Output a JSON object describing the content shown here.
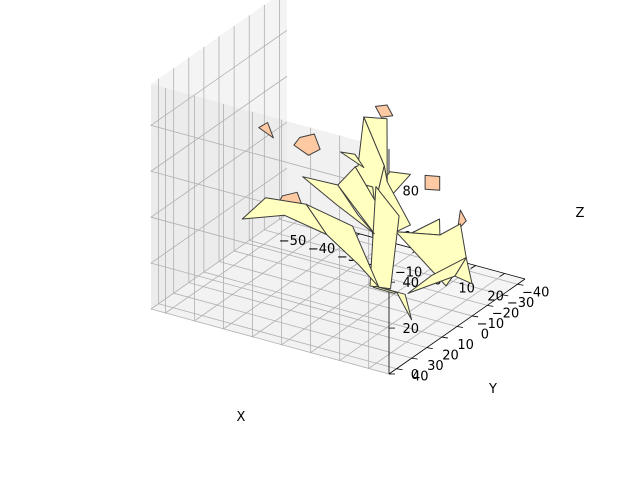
{
  "chart_data": {
    "type": "3d-polygon-mesh",
    "description_of_view": "matplotlib 3D axes, default elevation/azimuth",
    "xlabel": "X",
    "ylabel": "Y",
    "zlabel": "Z",
    "xlim": [
      -55,
      27
    ],
    "ylim": [
      -45,
      45
    ],
    "zlim": [
      0,
      98
    ],
    "x_ticks": [
      -50,
      -40,
      -30,
      -20,
      -10,
      0,
      10,
      20
    ],
    "y_ticks": [
      -40,
      -30,
      -20,
      -10,
      0,
      10,
      20,
      30,
      40
    ],
    "z_ticks": [
      0,
      20,
      40,
      60,
      80
    ],
    "grid": true,
    "colors": {
      "leaf_face": "#ffffbf",
      "bud_face": "#fdc9a3",
      "edge": "#3c3c3c",
      "pane_left": "#ebebeb",
      "pane_right": "#e6e6e6",
      "pane_floor": "#f2f2f2",
      "grid": "#b0b0b0"
    },
    "leaves": [
      [
        [
          -48,
          -2,
          20
        ],
        [
          -40,
          -2,
          32
        ],
        [
          -26,
          -2,
          34
        ],
        [
          -20,
          -4,
          22
        ],
        [
          -34,
          -3,
          26
        ]
      ],
      [
        [
          -20,
          -4,
          22
        ],
        [
          -26,
          -2,
          34
        ],
        [
          -10,
          -2,
          30
        ],
        [
          0,
          0,
          8
        ],
        [
          -8,
          -2,
          14
        ]
      ],
      [
        [
          -22,
          8,
          52
        ],
        [
          -12,
          4,
          50
        ],
        [
          -6,
          2,
          38
        ],
        [
          -2,
          -1,
          30
        ],
        [
          -12,
          5,
          42
        ]
      ],
      [
        [
          -12,
          4,
          50
        ],
        [
          -6,
          4,
          60
        ],
        [
          0,
          2,
          46
        ],
        [
          -2,
          -1,
          30
        ]
      ],
      [
        [
          -4,
          6,
          62
        ],
        [
          -2,
          6,
          84
        ],
        [
          4,
          4,
          64
        ],
        [
          0,
          2,
          46
        ],
        [
          -6,
          4,
          60
        ]
      ],
      [
        [
          -2,
          6,
          84
        ],
        [
          6,
          6,
          86
        ],
        [
          4,
          2,
          56
        ],
        [
          4,
          4,
          64
        ]
      ],
      [
        [
          4,
          4,
          64
        ],
        [
          4,
          2,
          56
        ],
        [
          12,
          2,
          40
        ],
        [
          6,
          0,
          34
        ],
        [
          0,
          2,
          46
        ]
      ],
      [
        [
          10,
          0,
          34
        ],
        [
          22,
          2,
          46
        ],
        [
          18,
          -6,
          34
        ],
        [
          6,
          0,
          34
        ]
      ],
      [
        [
          18,
          -6,
          34
        ],
        [
          24,
          -8,
          40
        ],
        [
          26,
          -8,
          26
        ],
        [
          18,
          -10,
          10
        ],
        [
          6,
          0,
          34
        ]
      ],
      [
        [
          26,
          -8,
          26
        ],
        [
          27,
          -10,
          14
        ],
        [
          20,
          -12,
          14
        ]
      ],
      [
        [
          14,
          -8,
          14
        ],
        [
          26,
          -8,
          26
        ],
        [
          20,
          -12,
          14
        ],
        [
          8,
          -4,
          6
        ]
      ],
      [
        [
          -4,
          -6,
          4
        ],
        [
          6,
          -6,
          4
        ],
        [
          6,
          -8,
          -2
        ],
        [
          2,
          -18,
          -14
        ],
        [
          0,
          -12,
          0
        ]
      ],
      [
        [
          -4,
          -6,
          4
        ],
        [
          0,
          -12,
          0
        ],
        [
          -2,
          -14,
          -2
        ],
        [
          -6,
          -8,
          2
        ]
      ],
      [
        [
          -4,
          -2,
          6
        ],
        [
          2,
          -4,
          6
        ],
        [
          6,
          -2,
          40
        ],
        [
          -2,
          -2,
          50
        ]
      ],
      [
        [
          4,
          2,
          48
        ],
        [
          12,
          2,
          62
        ],
        [
          6,
          4,
          62
        ],
        [
          2,
          4,
          54
        ]
      ],
      [
        [
          -10,
          6,
          66
        ],
        [
          -2,
          6,
          62
        ],
        [
          -4,
          8,
          68
        ]
      ],
      [
        [
          0,
          0,
          8
        ],
        [
          2,
          0,
          8
        ],
        [
          -1,
          2,
          52
        ],
        [
          -3,
          2,
          52
        ]
      ]
    ],
    "buds": [
      [
        [
          -30,
          6,
          40
        ],
        [
          -26,
          4,
          42
        ],
        [
          -24,
          4,
          36
        ],
        [
          -28,
          4,
          32
        ],
        [
          -32,
          6,
          35
        ]
      ],
      [
        [
          -22,
          10,
          70
        ],
        [
          -18,
          8,
          72
        ],
        [
          -16,
          8,
          66
        ],
        [
          -20,
          8,
          62
        ],
        [
          -24,
          10,
          66
        ]
      ],
      [
        [
          -34,
          14,
          72
        ],
        [
          -32,
          12,
          74
        ],
        [
          -30,
          12,
          68
        ]
      ],
      [
        [
          2,
          6,
          90
        ],
        [
          6,
          6,
          92
        ],
        [
          8,
          6,
          88
        ],
        [
          4,
          6,
          86
        ]
      ],
      [
        [
          16,
          0,
          62
        ],
        [
          20,
          -2,
          62
        ],
        [
          20,
          -2,
          56
        ],
        [
          16,
          0,
          56
        ]
      ],
      [
        [
          24,
          -8,
          46
        ],
        [
          26,
          -8,
          42
        ],
        [
          24,
          -6,
          38
        ]
      ]
    ]
  }
}
